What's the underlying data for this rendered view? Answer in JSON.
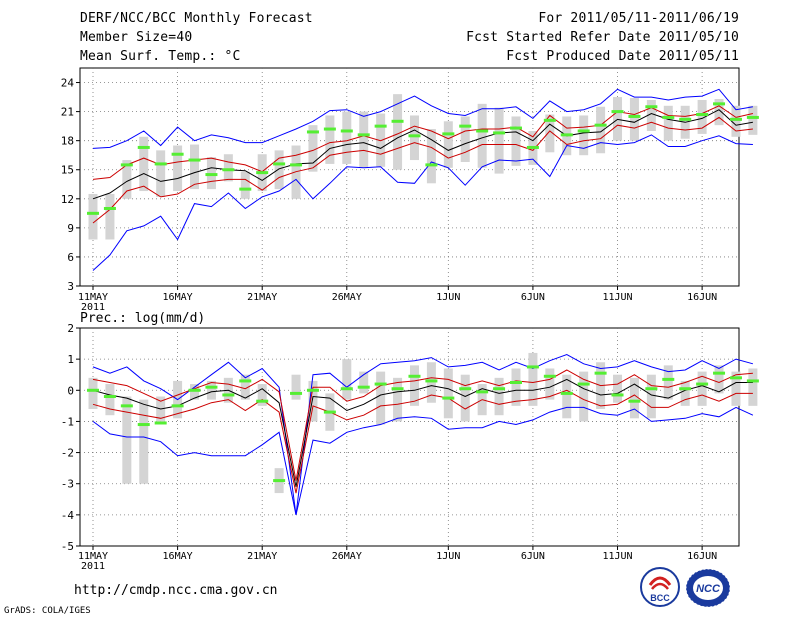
{
  "header": {
    "title": "DERF/NCC/BCC Monthly Forecast",
    "member_size": "Member Size=40",
    "temp_label": "Mean Surf. Temp.: °C",
    "forecast_range": "For 2011/05/11-2011/06/19",
    "started_refer": "Fcst Started Refer Date 2011/05/10",
    "produced": "Fcst Produced Date 2011/05/11"
  },
  "footer": {
    "url": "http://cmdp.ncc.cma.gov.cn",
    "grads": "GrADS: COLA/IGES",
    "logo_bcc": "BCC",
    "logo_ncc": "NCC"
  },
  "colors": {
    "envelope": "#0000ff",
    "spread": "#cc0000",
    "mean": "#000000",
    "box": "#d4d4d4",
    "median": "#55ee33"
  },
  "chart_data": [
    {
      "type": "line",
      "title": "Mean Surf. Temp.: °C",
      "ylim": [
        3,
        25.5
      ],
      "yticks": [
        3,
        6,
        9,
        12,
        15,
        18,
        21,
        24
      ],
      "xlim": [
        0,
        39
      ],
      "xticks": [
        {
          "day": 0,
          "label": "11MAY"
        },
        {
          "day": 5,
          "label": "16MAY"
        },
        {
          "day": 10,
          "label": "21MAY"
        },
        {
          "day": 15,
          "label": "26MAY"
        },
        {
          "day": 21,
          "label": "1JUN"
        },
        {
          "day": 26,
          "label": "6JUN"
        },
        {
          "day": 31,
          "label": "11JUN"
        },
        {
          "day": 36,
          "label": "16JUN"
        }
      ],
      "year_label": "2011",
      "series": [
        {
          "name": "max",
          "values": [
            4.6,
            6.2,
            8.7,
            9.2,
            10.2,
            7.8,
            11.5,
            11.2,
            12.6,
            11.0,
            12.2,
            12.8,
            14.0,
            12.0,
            13.6,
            15.3,
            15.2,
            15.3,
            13.7,
            13.6,
            15.8,
            15.2,
            13.4,
            15.3,
            16.0,
            15.9,
            16.1,
            14.3,
            17.5,
            17.2,
            17.8,
            17.6,
            17.8,
            18.6,
            17.4,
            17.4,
            18.0,
            18.5,
            17.7,
            17.6
          ]
        },
        {
          "name": "upper_envelope",
          "values": [
            17.2,
            17.3,
            18.0,
            19.0,
            17.5,
            19.4,
            18.0,
            18.6,
            18.3,
            17.8,
            17.8,
            18.5,
            19.2,
            20.0,
            21.1,
            21.2,
            20.5,
            21.0,
            21.8,
            22.6,
            21.6,
            20.8,
            20.6,
            21.3,
            21.3,
            21.5,
            20.3,
            22.1,
            21.0,
            21.2,
            21.8,
            23.3,
            22.5,
            22.5,
            22.2,
            22.5,
            22.6,
            23.3,
            21.2,
            21.5
          ]
        },
        {
          "name": "upper_spread",
          "values": [
            14.0,
            14.2,
            15.5,
            16.2,
            15.5,
            15.8,
            16.0,
            16.2,
            15.8,
            15.5,
            14.8,
            16.2,
            16.5,
            17.0,
            17.8,
            18.0,
            18.5,
            18.0,
            18.7,
            19.5,
            19.0,
            18.2,
            19.0,
            19.2,
            19.2,
            19.4,
            18.4,
            20.6,
            19.3,
            19.4,
            19.6,
            21.0,
            20.7,
            21.4,
            20.6,
            20.5,
            20.8,
            21.6,
            20.4,
            20.8
          ]
        },
        {
          "name": "mean",
          "values": [
            12.0,
            12.6,
            13.8,
            14.6,
            13.8,
            14.1,
            14.7,
            15.2,
            15.0,
            14.9,
            13.9,
            15.1,
            15.6,
            15.7,
            17.2,
            17.6,
            17.8,
            17.2,
            18.3,
            19.1,
            18.1,
            17.0,
            17.7,
            18.3,
            18.8,
            18.9,
            18.0,
            19.7,
            18.5,
            18.8,
            18.9,
            20.2,
            19.9,
            20.8,
            20.2,
            19.9,
            20.3,
            21.2,
            19.6,
            19.9
          ]
        },
        {
          "name": "lower_spread",
          "values": [
            9.5,
            10.9,
            12.8,
            13.3,
            12.2,
            12.5,
            13.5,
            13.8,
            14.0,
            14.0,
            12.9,
            14.2,
            14.8,
            15.2,
            16.5,
            16.8,
            17.0,
            16.6,
            17.2,
            17.8,
            17.3,
            16.2,
            16.8,
            17.6,
            17.6,
            17.6,
            17.0,
            19.0,
            17.6,
            18.0,
            18.2,
            19.6,
            19.3,
            19.9,
            19.3,
            19.1,
            19.3,
            20.4,
            19.0,
            19.2
          ]
        },
        {
          "name": "lower_envelope",
          "values": [
            4.6,
            6.2,
            8.7,
            9.2,
            10.2,
            7.8,
            11.5,
            11.2,
            12.6,
            11.0,
            12.2,
            12.8,
            14.0,
            12.0,
            13.6,
            15.3,
            15.2,
            15.3,
            13.7,
            13.6,
            15.8,
            15.2,
            13.4,
            15.3,
            16.0,
            15.9,
            16.1,
            14.3,
            17.5,
            17.2,
            17.8,
            17.6,
            17.8,
            18.6,
            17.4,
            17.4,
            18.0,
            18.5,
            17.7,
            17.6
          ]
        },
        {
          "name": "median",
          "values": [
            10.5,
            11.0,
            15.5,
            17.3,
            15.6,
            16.6,
            16.0,
            14.5,
            15.0,
            13.0,
            14.7,
            15.6,
            15.5,
            18.9,
            19.2,
            19.0,
            18.6,
            19.5,
            20.0,
            18.5,
            15.5,
            18.7,
            19.5,
            19.0,
            18.8,
            19.3,
            17.3,
            20.1,
            18.6,
            19.0,
            19.6,
            21.0,
            20.5,
            21.5,
            20.4,
            20.2,
            20.7,
            21.8,
            20.2,
            20.4
          ]
        },
        {
          "name": "box_low",
          "values": [
            7.8,
            7.8,
            12.0,
            12.8,
            12.2,
            12.8,
            13.0,
            13.0,
            13.8,
            12.0,
            12.8,
            13.0,
            12.0,
            14.8,
            15.6,
            15.6,
            15.2,
            15.3,
            15.0,
            16.0,
            13.6,
            15.2,
            15.8,
            15.2,
            14.6,
            15.4,
            15.5,
            16.8,
            16.5,
            16.5,
            16.7,
            18.0,
            18.0,
            19.0,
            18.0,
            18.2,
            18.7,
            19.6,
            18.4,
            18.6
          ]
        },
        {
          "name": "box_high",
          "values": [
            12.5,
            12.5,
            16.0,
            18.4,
            17.0,
            17.5,
            17.6,
            16.3,
            16.6,
            14.8,
            16.6,
            17.0,
            17.5,
            19.6,
            20.6,
            21.0,
            21.0,
            20.8,
            22.8,
            20.6,
            19.2,
            20.0,
            20.5,
            21.8,
            21.4,
            20.5,
            19.0,
            20.7,
            20.5,
            20.6,
            21.5,
            22.5,
            22.4,
            22.2,
            21.6,
            21.6,
            22.2,
            22.3,
            21.6,
            21.6
          ]
        }
      ]
    },
    {
      "type": "line",
      "title": "Prec.: log(mm/d)",
      "ylim": [
        -5,
        2
      ],
      "yticks": [
        -5,
        -4,
        -3,
        -2,
        -1,
        0,
        1,
        2
      ],
      "xlim": [
        0,
        39
      ],
      "xticks": [
        {
          "day": 0,
          "label": "11MAY"
        },
        {
          "day": 5,
          "label": "16MAY"
        },
        {
          "day": 10,
          "label": "21MAY"
        },
        {
          "day": 15,
          "label": "26MAY"
        },
        {
          "day": 21,
          "label": "1JUN"
        },
        {
          "day": 26,
          "label": "6JUN"
        },
        {
          "day": 31,
          "label": "11JUN"
        },
        {
          "day": 36,
          "label": "16JUN"
        }
      ],
      "year_label": "2011",
      "series": [
        {
          "name": "upper_envelope",
          "values": [
            0.75,
            0.55,
            0.75,
            0.3,
            0.05,
            -0.3,
            0.1,
            0.5,
            0.9,
            0.4,
            0.7,
            0.1,
            -4.0,
            0.5,
            0.55,
            0.1,
            0.5,
            0.85,
            0.9,
            0.95,
            1.05,
            0.75,
            0.8,
            0.9,
            0.65,
            0.9,
            0.7,
            0.95,
            1.15,
            0.85,
            0.7,
            0.75,
            0.95,
            0.75,
            0.6,
            0.65,
            0.95,
            0.7,
            1.0,
            0.85
          ]
        },
        {
          "name": "upper_spread",
          "values": [
            0.35,
            0.25,
            0.15,
            -0.1,
            -0.35,
            -0.15,
            0.05,
            0.25,
            0.2,
            0.05,
            0.35,
            -0.05,
            -2.9,
            0.1,
            0.1,
            -0.35,
            -0.2,
            0.15,
            0.25,
            0.3,
            0.4,
            0.35,
            0.15,
            0.3,
            0.15,
            0.3,
            0.25,
            0.35,
            0.65,
            0.35,
            0.15,
            0.2,
            0.5,
            0.15,
            0.1,
            0.25,
            0.45,
            0.25,
            0.5,
            0.55
          ]
        },
        {
          "name": "mean",
          "values": [
            0.0,
            -0.15,
            -0.25,
            -0.45,
            -0.6,
            -0.5,
            -0.25,
            -0.05,
            0.0,
            -0.25,
            0.05,
            -0.4,
            -3.1,
            -0.2,
            -0.25,
            -0.65,
            -0.45,
            -0.15,
            -0.05,
            0.0,
            0.15,
            0.05,
            -0.2,
            0.05,
            -0.1,
            0.0,
            0.0,
            0.1,
            0.35,
            0.05,
            -0.15,
            -0.1,
            0.2,
            -0.15,
            -0.25,
            0.0,
            0.15,
            -0.05,
            0.25,
            0.25
          ]
        },
        {
          "name": "lower_spread",
          "values": [
            -0.45,
            -0.6,
            -0.7,
            -0.8,
            -0.9,
            -0.75,
            -0.6,
            -0.4,
            -0.3,
            -0.65,
            -0.3,
            -0.7,
            -3.3,
            -0.5,
            -0.7,
            -0.95,
            -0.8,
            -0.5,
            -0.45,
            -0.35,
            -0.15,
            -0.25,
            -0.6,
            -0.3,
            -0.45,
            -0.35,
            -0.3,
            -0.2,
            0.0,
            -0.3,
            -0.5,
            -0.45,
            -0.15,
            -0.55,
            -0.55,
            -0.3,
            -0.15,
            -0.35,
            -0.1,
            -0.1
          ]
        },
        {
          "name": "lower_envelope",
          "values": [
            -1.0,
            -1.4,
            -1.5,
            -1.5,
            -1.65,
            -2.1,
            -2.0,
            -2.1,
            -2.1,
            -2.1,
            -1.75,
            -1.35,
            -4.0,
            -1.6,
            -1.7,
            -1.35,
            -1.2,
            -1.1,
            -0.9,
            -0.85,
            -0.9,
            -1.25,
            -1.2,
            -1.2,
            -1.0,
            -1.1,
            -0.95,
            -0.7,
            -0.55,
            -0.55,
            -0.75,
            -0.8,
            -0.6,
            -1.0,
            -0.95,
            -0.9,
            -0.75,
            -0.85,
            -0.55,
            -0.8
          ]
        },
        {
          "name": "median",
          "values": [
            0.0,
            -0.2,
            -0.5,
            -1.1,
            -1.05,
            -0.5,
            0.0,
            0.1,
            -0.15,
            0.3,
            -0.35,
            -2.9,
            -0.1,
            0.0,
            -0.7,
            0.05,
            0.1,
            0.2,
            0.05,
            0.45,
            0.3,
            -0.25,
            0.05,
            -0.05,
            0.05,
            0.25,
            0.75,
            0.45,
            -0.1,
            0.2,
            0.55,
            -0.15,
            -0.35,
            0.05,
            0.35,
            0.05,
            0.2,
            0.55,
            0.4,
            0.3
          ]
        },
        {
          "name": "box_low",
          "values": [
            -0.6,
            -0.8,
            -3.0,
            -3.0,
            -1.0,
            -0.9,
            -0.3,
            -0.3,
            -0.4,
            -0.3,
            -0.5,
            -3.3,
            -0.3,
            -1.0,
            -1.3,
            -0.3,
            -0.1,
            -1.1,
            -1.0,
            -0.5,
            -0.4,
            -0.9,
            -1.0,
            -0.8,
            -0.8,
            -0.5,
            -0.5,
            -0.3,
            -0.9,
            -1.0,
            -0.6,
            -0.4,
            -0.9,
            -0.9,
            -0.3,
            -0.5,
            -0.5,
            -0.1,
            -0.5,
            -0.5
          ]
        },
        {
          "name": "box_high",
          "values": [
            0.4,
            0.2,
            -0.2,
            -0.3,
            -0.2,
            0.3,
            0.2,
            0.3,
            0.4,
            0.5,
            0.2,
            -2.5,
            0.5,
            0.3,
            -0.1,
            1.0,
            0.6,
            0.6,
            0.4,
            0.8,
            0.9,
            0.7,
            0.5,
            0.2,
            0.4,
            0.7,
            1.2,
            0.7,
            0.5,
            0.6,
            0.9,
            0.5,
            0.4,
            0.5,
            0.8,
            0.3,
            0.6,
            0.8,
            0.6,
            0.7
          ]
        }
      ]
    }
  ]
}
